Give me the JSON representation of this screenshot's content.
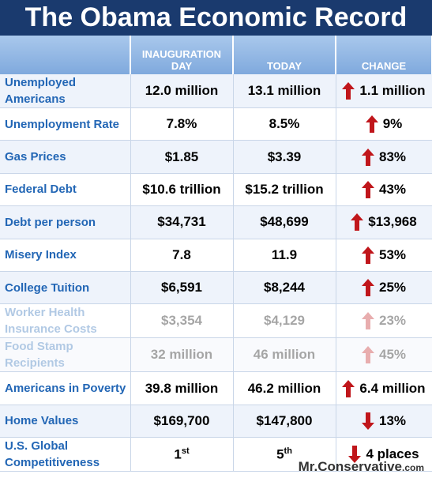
{
  "header": {
    "title": "The Obama Economic Record"
  },
  "table": {
    "columns": [
      "INAUGURATION DAY",
      "TODAY",
      "CHANGE"
    ],
    "rows": [
      {
        "label": "Unemployed Americans",
        "inauguration": "12.0 million",
        "today": "13.1 million",
        "change": "1.1 million",
        "direction": "up"
      },
      {
        "label": "Unemployment Rate",
        "inauguration": "7.8%",
        "today": "8.5%",
        "change": "9%",
        "direction": "up"
      },
      {
        "label": "Gas Prices",
        "inauguration": "$1.85",
        "today": "$3.39",
        "change": "83%",
        "direction": "up"
      },
      {
        "label": "Federal Debt",
        "inauguration": "$10.6 trillion",
        "today": "$15.2 trillion",
        "change": "43%",
        "direction": "up"
      },
      {
        "label": "Debt per person",
        "inauguration": "$34,731",
        "today": "$48,699",
        "change": "$13,968",
        "direction": "up"
      },
      {
        "label": "Misery Index",
        "inauguration": "7.8",
        "today": "11.9",
        "change": "53%",
        "direction": "up"
      },
      {
        "label": "College Tuition",
        "inauguration": "$6,591",
        "today": "$8,244",
        "change": "25%",
        "direction": "up"
      },
      {
        "label": "Worker Health Insurance Costs",
        "inauguration": "$3,354",
        "today": "$4,129",
        "change": "23%",
        "direction": "up",
        "faded": true
      },
      {
        "label": "Food Stamp Recipients",
        "inauguration": "32 million",
        "today": "46 million",
        "change": "45%",
        "direction": "up",
        "faded": true
      },
      {
        "label": "Americans in Poverty",
        "inauguration": "39.8 million",
        "today": "46.2 million",
        "change": "6.4 million",
        "direction": "up"
      },
      {
        "label": "Home Values",
        "inauguration": "$169,700",
        "today": "$147,800",
        "change": "13%",
        "direction": "down"
      },
      {
        "label": "U.S. Global Competitiveness",
        "inauguration": {
          "base": "1",
          "sup": "st"
        },
        "today": {
          "base": "5",
          "sup": "th"
        },
        "change": "4 places",
        "direction": "down"
      }
    ]
  },
  "footer": {
    "name": "Mr.Conservative",
    "tld": ".com"
  }
}
